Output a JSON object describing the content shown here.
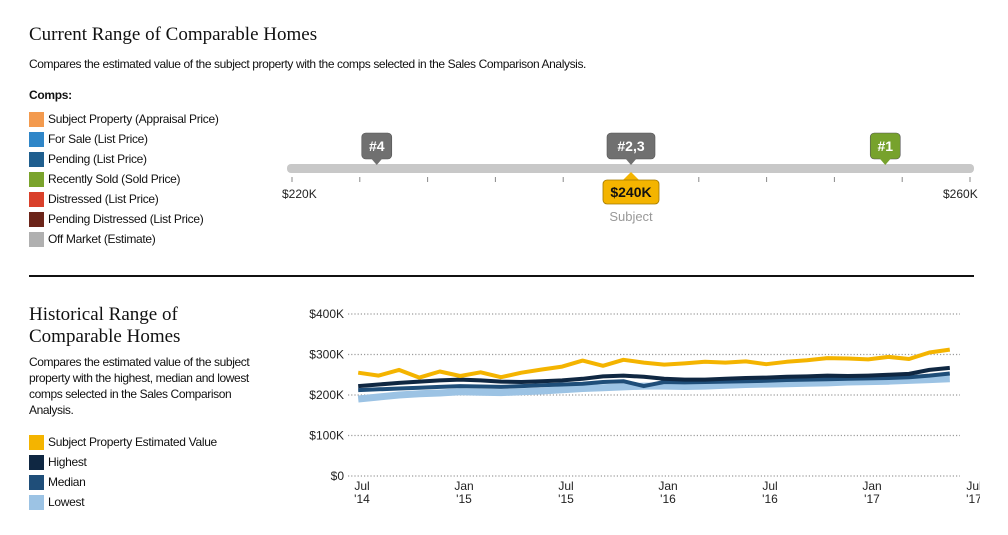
{
  "current": {
    "title": "Current Range of Comparable Homes",
    "description": "Compares the estimated value of the subject property with the comps selected in the Sales Comparison Analysis.",
    "comps_label": "Comps:",
    "legend": [
      {
        "label": "Subject Property (Appraisal Price)",
        "color": "#f39a4e"
      },
      {
        "label": "For Sale (List Price)",
        "color": "#2f86c8"
      },
      {
        "label": "Pending (List Price)",
        "color": "#1f5e8e"
      },
      {
        "label": "Recently Sold (Sold Price)",
        "color": "#7aa32c"
      },
      {
        "label": "Distressed (List Price)",
        "color": "#d9402a"
      },
      {
        "label": "Pending Distressed (List Price)",
        "color": "#6b2419"
      },
      {
        "label": "Off Market (Estimate)",
        "color": "#b0b0b0"
      }
    ],
    "scale": {
      "min": 220,
      "max": 260,
      "min_label": "$220K",
      "max_label": "$260K",
      "markers": [
        {
          "label": "#4",
          "value": 225,
          "color": "#707070"
        },
        {
          "label": "#2,3",
          "value": 240,
          "color": "#707070"
        },
        {
          "label": "#1",
          "value": 255,
          "color": "#77a22d"
        }
      ],
      "subject": {
        "label": "$240K",
        "value": 240,
        "caption": "Subject",
        "color": "#f4b400"
      }
    }
  },
  "historical": {
    "title_line1": "Historical Range of",
    "title_line2": "Comparable Homes",
    "description": "Compares the estimated value of the subject property with the highest, median and lowest comps selected in the Sales Comparison Analysis.",
    "legend": [
      {
        "label": "Subject Property Estimated Value",
        "color": "#f4b400"
      },
      {
        "label": "Highest",
        "color": "#0f2742"
      },
      {
        "label": "Median",
        "color": "#1f4e79"
      },
      {
        "label": "Lowest",
        "color": "#9cc3e4"
      }
    ]
  },
  "chart_data": {
    "type": "line",
    "title": "",
    "xlabel": "",
    "ylabel": "",
    "ylim": [
      0,
      400
    ],
    "yticks": [
      0,
      100,
      200,
      300,
      400
    ],
    "ytick_labels": [
      "$0",
      "$100K",
      "$200K",
      "$300K",
      "$400K"
    ],
    "xlim": [
      2014.5,
      2017.5
    ],
    "xticks": [
      {
        "line1": "Jul",
        "line2": "'14",
        "x": 2014.5
      },
      {
        "line1": "Jan",
        "line2": "'15",
        "x": 2015.0
      },
      {
        "line1": "Jul",
        "line2": "'15",
        "x": 2015.5
      },
      {
        "line1": "Jan",
        "line2": "'16",
        "x": 2016.0
      },
      {
        "line1": "Jul",
        "line2": "'16",
        "x": 2016.5
      },
      {
        "line1": "Jan",
        "line2": "'17",
        "x": 2017.0
      },
      {
        "line1": "Jul",
        "line2": "'17",
        "x": 2017.5
      }
    ],
    "grid": true,
    "x": [
      2014.55,
      2014.65,
      2014.75,
      2014.85,
      2014.95,
      2015.05,
      2015.15,
      2015.25,
      2015.35,
      2015.45,
      2015.55,
      2015.65,
      2015.75,
      2015.85,
      2015.95,
      2016.05,
      2016.15,
      2016.25,
      2016.35,
      2016.45,
      2016.55,
      2016.65,
      2016.75,
      2016.85,
      2016.95,
      2017.05,
      2017.15,
      2017.25,
      2017.35,
      2017.45
    ],
    "series": [
      {
        "name": "Subject Property Estimated Value",
        "color": "#f4b400",
        "values": [
          255,
          248,
          262,
          243,
          258,
          247,
          256,
          244,
          255,
          263,
          270,
          285,
          272,
          287,
          280,
          275,
          278,
          282,
          280,
          283,
          276,
          282,
          286,
          291,
          290,
          288,
          294,
          289,
          305,
          312
        ]
      },
      {
        "name": "Highest",
        "color": "#0f2742",
        "values": [
          222,
          226,
          230,
          233,
          236,
          238,
          236,
          233,
          232,
          234,
          236,
          240,
          246,
          248,
          245,
          240,
          238,
          238,
          240,
          242,
          243,
          245,
          246,
          248,
          247,
          248,
          250,
          252,
          262,
          267
        ]
      },
      {
        "name": "Median",
        "color": "#1f4e79",
        "values": [
          212,
          214,
          216,
          218,
          220,
          222,
          221,
          220,
          222,
          224,
          226,
          228,
          232,
          234,
          222,
          232,
          231,
          232,
          233,
          234,
          235,
          237,
          238,
          239,
          240,
          241,
          242,
          244,
          248,
          253
        ]
      },
      {
        "name": "Lowest",
        "color": "#9cc3e4",
        "values": [
          190,
          195,
          200,
          203,
          205,
          208,
          207,
          206,
          208,
          210,
          213,
          216,
          218,
          220,
          222,
          222,
          221,
          222,
          224,
          226,
          227,
          228,
          229,
          230,
          232,
          233,
          234,
          236,
          238,
          240
        ]
      }
    ]
  }
}
